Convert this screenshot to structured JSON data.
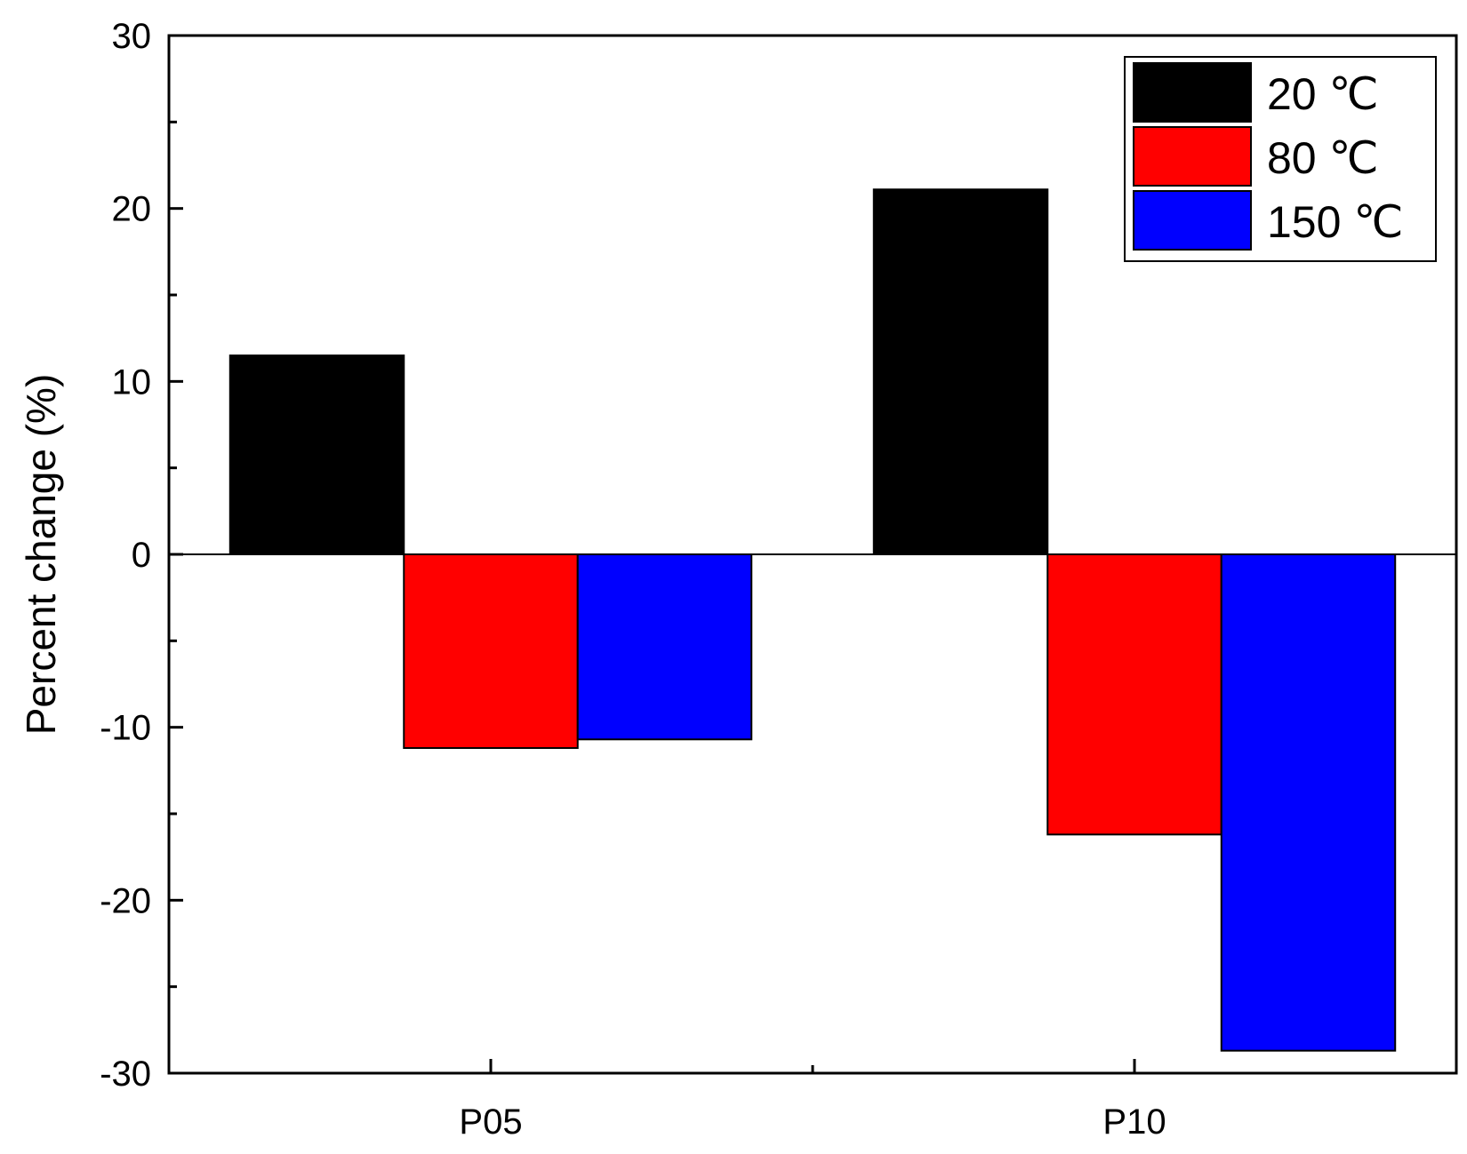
{
  "chart_data": {
    "type": "bar",
    "title": "",
    "xlabel": "",
    "ylabel": "Percent change (%)",
    "categories": [
      "P05",
      "P10"
    ],
    "series": [
      {
        "name": "20 ℃",
        "color": "#000000",
        "values": [
          11.5,
          21.1
        ]
      },
      {
        "name": "80 ℃",
        "color": "#ff0000",
        "values": [
          -11.2,
          -16.2
        ]
      },
      {
        "name": "150 ℃",
        "color": "#0000ff",
        "values": [
          -10.7,
          -28.7
        ]
      }
    ],
    "ylim": [
      -30,
      30
    ],
    "yticks": [
      "30",
      "20",
      "10",
      "0",
      "-10",
      "-20",
      "-30"
    ],
    "grid": false,
    "legend_position": "top-right",
    "zero_line": true
  }
}
